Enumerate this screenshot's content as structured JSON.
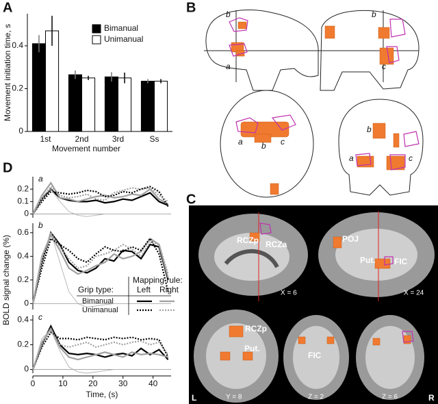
{
  "chart_data": [
    {
      "type": "bar",
      "ylabel": "Movement initiation time, s",
      "xlabel": "Movement number",
      "categories": [
        "1st",
        "2nd",
        "3rd",
        "Ss"
      ],
      "series": [
        {
          "name": "Bimanual",
          "color": "#000000",
          "values": [
            0.41,
            0.265,
            0.255,
            0.235
          ],
          "errors": [
            0.04,
            0.02,
            0.022,
            0.01
          ]
        },
        {
          "name": "Unimanual",
          "color": "#ffffff",
          "values": [
            0.47,
            0.25,
            0.25,
            0.235
          ],
          "errors": [
            0.07,
            0.01,
            0.025,
            0.01
          ]
        }
      ],
      "ylim": [
        0,
        0.55
      ],
      "yticks": [
        0,
        0.2,
        0.4
      ]
    },
    {
      "type": "line",
      "subtitle": "a",
      "x": [
        0,
        3,
        6,
        9,
        12,
        15,
        18,
        21,
        24,
        27,
        30,
        33,
        36,
        39,
        42,
        45
      ],
      "xlim": [
        0,
        46
      ],
      "ylim": [
        -0.03,
        0.3
      ],
      "yticks": [
        0,
        0.1,
        0.2
      ],
      "series": [
        {
          "color": "#000000",
          "line_style": "solid",
          "values": [
            0,
            0.12,
            0.2,
            0.13,
            0.11,
            0.1,
            0.1,
            0.11,
            0.09,
            0.1,
            0.12,
            0.11,
            0.14,
            0.17,
            0.1,
            0.07
          ]
        },
        {
          "color": "#a0a0a0",
          "line_style": "solid",
          "values": [
            0,
            0.15,
            0.25,
            0.13,
            0.12,
            0.1,
            0.12,
            0.14,
            0.15,
            0.13,
            0.14,
            0.16,
            0.15,
            0.2,
            0.12,
            0.08
          ]
        },
        {
          "color": "#000000",
          "line_style": "dotted",
          "values": [
            0,
            0.1,
            0.18,
            0.17,
            0.16,
            0.17,
            0.19,
            0.18,
            0.14,
            0.15,
            0.18,
            0.17,
            0.2,
            0.22,
            0.18,
            0.06
          ]
        },
        {
          "color": "#a0a0a0",
          "line_style": "dotted",
          "values": [
            0,
            0.12,
            0.22,
            0.15,
            0.13,
            0.14,
            0.16,
            0.12,
            0.11,
            0.17,
            0.19,
            0.21,
            0.2,
            0.21,
            0.15,
            0.1
          ]
        },
        {
          "color": "#b0b0b0",
          "line_style": "thin",
          "values": [
            0,
            0.14,
            0.2,
            0.1,
            0.02,
            -0.01,
            -0.02,
            -0.01,
            0,
            0,
            0,
            0,
            0,
            0,
            0,
            0
          ]
        }
      ]
    },
    {
      "type": "line",
      "subtitle": "b",
      "ylabel": "BOLD signal change (%)",
      "x": [
        0,
        3,
        6,
        9,
        12,
        15,
        18,
        21,
        24,
        27,
        30,
        33,
        36,
        39,
        42,
        45
      ],
      "xlim": [
        0,
        46
      ],
      "ylim": [
        -0.05,
        0.68
      ],
      "yticks": [
        0,
        0.2,
        0.4,
        0.6
      ],
      "legend": {
        "grip_type": "Grip type:",
        "mapping_rule": "Mapping rule:",
        "columns": [
          "Left",
          "Right"
        ],
        "rows": [
          "Bimanual",
          "Unimanual"
        ]
      },
      "series": [
        {
          "color": "#000000",
          "line_style": "solid",
          "values": [
            0,
            0.35,
            0.6,
            0.5,
            0.35,
            0.28,
            0.26,
            0.3,
            0.38,
            0.36,
            0.45,
            0.44,
            0.38,
            0.5,
            0.48,
            0.2
          ]
        },
        {
          "color": "#a0a0a0",
          "line_style": "solid",
          "values": [
            0,
            0.4,
            0.58,
            0.45,
            0.3,
            0.25,
            0.28,
            0.32,
            0.35,
            0.42,
            0.38,
            0.4,
            0.44,
            0.55,
            0.5,
            0.22
          ]
        },
        {
          "color": "#000000",
          "line_style": "dotted",
          "values": [
            0,
            0.3,
            0.55,
            0.5,
            0.45,
            0.38,
            0.35,
            0.42,
            0.48,
            0.45,
            0.44,
            0.48,
            0.45,
            0.55,
            0.42,
            0.1
          ]
        },
        {
          "color": "#a0a0a0",
          "line_style": "dotted",
          "values": [
            0,
            0.35,
            0.6,
            0.48,
            0.38,
            0.3,
            0.32,
            0.4,
            0.42,
            0.45,
            0.5,
            0.46,
            0.4,
            0.52,
            0.5,
            0.25
          ]
        },
        {
          "color": "#b0b0b0",
          "line_style": "thin",
          "values": [
            0,
            0.4,
            0.6,
            0.35,
            0.1,
            0,
            -0.03,
            -0.02,
            -0.01,
            0,
            0,
            0,
            0,
            0,
            0,
            0
          ]
        }
      ]
    },
    {
      "type": "line",
      "subtitle": "c",
      "xlabel": "Time, (s)",
      "x": [
        0,
        3,
        6,
        9,
        12,
        15,
        18,
        21,
        24,
        27,
        30,
        33,
        36,
        39,
        42,
        45
      ],
      "xlim": [
        0,
        46
      ],
      "xticks": [
        0,
        10,
        20,
        30,
        40
      ],
      "ylim": [
        -0.03,
        0.44
      ],
      "yticks": [
        0,
        0.2,
        0.4
      ],
      "series": [
        {
          "color": "#000000",
          "line_style": "solid",
          "values": [
            0,
            0.2,
            0.35,
            0.2,
            0.13,
            0.12,
            0.13,
            0.12,
            0.1,
            0.12,
            0.13,
            0.11,
            0.17,
            0.12,
            0.16,
            0.08
          ]
        },
        {
          "color": "#a0a0a0",
          "line_style": "solid",
          "values": [
            0,
            0.22,
            0.33,
            0.18,
            0.1,
            0.08,
            0.1,
            0.12,
            0.14,
            0.12,
            0.1,
            0.14,
            0.12,
            0.13,
            0.12,
            0.1
          ]
        },
        {
          "color": "#000000",
          "line_style": "dotted",
          "values": [
            0,
            0.18,
            0.3,
            0.25,
            0.25,
            0.24,
            0.26,
            0.25,
            0.24,
            0.26,
            0.25,
            0.26,
            0.24,
            0.25,
            0.24,
            0.1
          ]
        },
        {
          "color": "#a0a0a0",
          "line_style": "dotted",
          "values": [
            0,
            0.2,
            0.32,
            0.2,
            0.18,
            0.2,
            0.22,
            0.18,
            0.2,
            0.22,
            0.2,
            0.22,
            0.23,
            0.2,
            0.22,
            0.12
          ]
        },
        {
          "color": "#b0b0b0",
          "line_style": "thin",
          "values": [
            0,
            0.25,
            0.32,
            0.15,
            0.02,
            -0.02,
            -0.03,
            -0.02,
            -0.01,
            0,
            0,
            0,
            0,
            0,
            0,
            0
          ]
        }
      ]
    }
  ],
  "panel_labels": [
    "A",
    "B",
    "C",
    "D"
  ],
  "panel_b": {
    "labels": [
      "b",
      "a",
      "b",
      "c",
      "a",
      "b",
      "c",
      "b",
      "a",
      "c"
    ]
  },
  "panel_c": {
    "labels": [
      "RCZp",
      "RCZa",
      "X = 6",
      "POJ",
      "Put.",
      "FIC",
      "X = 24",
      "RCZp",
      "Put.",
      "Y = 8",
      "FIC",
      "Z = 2",
      "Z = 6",
      "L",
      "R"
    ]
  }
}
